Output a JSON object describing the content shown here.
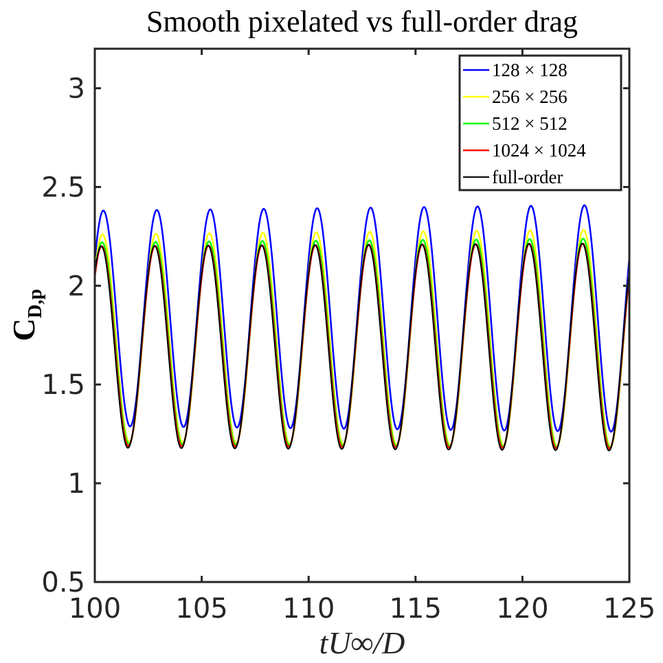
{
  "chart_data": {
    "type": "line",
    "title": "Smooth pixelated vs full-order drag",
    "xlabel": "tU∞/D",
    "ylabel": {
      "main": "C",
      "sub": "D,p"
    },
    "xlim": [
      100,
      125
    ],
    "ylim": [
      0.5,
      3.2
    ],
    "xticks": [
      100,
      105,
      110,
      115,
      120,
      125
    ],
    "xtick_labels": [
      "100",
      "105",
      "110",
      "115",
      "120",
      "125"
    ],
    "yticks": [
      0.5,
      1,
      1.5,
      2,
      2.5,
      3
    ],
    "ytick_labels": [
      "0.5",
      "1",
      "1.5",
      "2",
      "2.5",
      "3"
    ],
    "legend_position": "top-right",
    "period": 2.5,
    "series": [
      {
        "name": "128 × 128",
        "color": "#0000ff",
        "mean": 1.835,
        "amplitude": 0.545,
        "amplitude_growth": 0.0012,
        "phase": 0.1,
        "samples": [
          [
            100,
            2.31
          ],
          [
            100.3,
            2.36
          ],
          [
            101.6,
            1.29
          ],
          [
            102.8,
            2.36
          ],
          [
            104.1,
            1.29
          ],
          [
            105.3,
            2.37
          ],
          [
            106.6,
            1.29
          ],
          [
            107.8,
            2.37
          ],
          [
            109.1,
            1.29
          ],
          [
            110.3,
            2.38
          ],
          [
            111.6,
            1.29
          ],
          [
            112.8,
            2.38
          ],
          [
            114.1,
            1.29
          ],
          [
            115.3,
            2.38
          ],
          [
            116.6,
            1.29
          ],
          [
            117.8,
            2.39
          ],
          [
            119.1,
            1.29
          ],
          [
            120.3,
            2.39
          ],
          [
            121.6,
            1.29
          ],
          [
            122.8,
            2.39
          ],
          [
            124.1,
            1.29
          ],
          [
            125,
            2.06
          ]
        ]
      },
      {
        "name": "256 × 256",
        "color": "#ffff00",
        "mean": 1.735,
        "amplitude": 0.525,
        "amplitude_growth": 0.001,
        "phase": 0.06,
        "samples": [
          [
            100.3,
            2.26
          ],
          [
            101.6,
            1.21
          ],
          [
            102.8,
            2.26
          ],
          [
            105.3,
            2.27
          ],
          [
            107.8,
            2.27
          ],
          [
            110.3,
            2.28
          ],
          [
            112.8,
            2.28
          ],
          [
            115.3,
            2.28
          ],
          [
            117.8,
            2.29
          ],
          [
            120.3,
            2.29
          ],
          [
            122.8,
            2.29
          ],
          [
            124.1,
            1.21
          ]
        ]
      },
      {
        "name": "512 × 512",
        "color": "#00ff00",
        "mean": 1.71,
        "amplitude": 0.51,
        "amplitude_growth": 0.0008,
        "phase": 0.04,
        "samples": [
          [
            100.3,
            2.21
          ],
          [
            101.6,
            1.2
          ],
          [
            102.8,
            2.22
          ],
          [
            105.3,
            2.22
          ],
          [
            107.8,
            2.23
          ],
          [
            110.3,
            2.23
          ],
          [
            112.8,
            2.23
          ],
          [
            115.3,
            2.24
          ],
          [
            117.8,
            2.24
          ],
          [
            120.3,
            2.24
          ],
          [
            122.8,
            2.24
          ],
          [
            124.1,
            1.2
          ]
        ]
      },
      {
        "name": "1024 × 1024",
        "color": "#ff0000",
        "mean": 1.695,
        "amplitude": 0.505,
        "amplitude_growth": 0.0006,
        "phase": 0.02,
        "samples": [
          [
            100.3,
            2.19
          ],
          [
            101.6,
            1.19
          ],
          [
            102.8,
            2.2
          ],
          [
            105.3,
            2.2
          ],
          [
            107.8,
            2.21
          ],
          [
            110.3,
            2.21
          ],
          [
            112.8,
            2.21
          ],
          [
            115.3,
            2.22
          ],
          [
            117.8,
            2.22
          ],
          [
            120.3,
            2.22
          ],
          [
            122.8,
            2.22
          ],
          [
            124.1,
            1.19
          ]
        ]
      },
      {
        "name": "full-order",
        "color": "#000000",
        "mean": 1.69,
        "amplitude": 0.51,
        "amplitude_growth": 0.0006,
        "phase": 0.0,
        "samples": [
          [
            100.3,
            2.18
          ],
          [
            101.6,
            1.18
          ],
          [
            102.8,
            2.19
          ],
          [
            105.3,
            2.19
          ],
          [
            107.8,
            2.2
          ],
          [
            110.3,
            2.2
          ],
          [
            112.8,
            2.2
          ],
          [
            115.3,
            2.21
          ],
          [
            117.8,
            2.21
          ],
          [
            120.3,
            2.21
          ],
          [
            122.8,
            2.22
          ],
          [
            124.1,
            1.18
          ]
        ]
      }
    ]
  }
}
